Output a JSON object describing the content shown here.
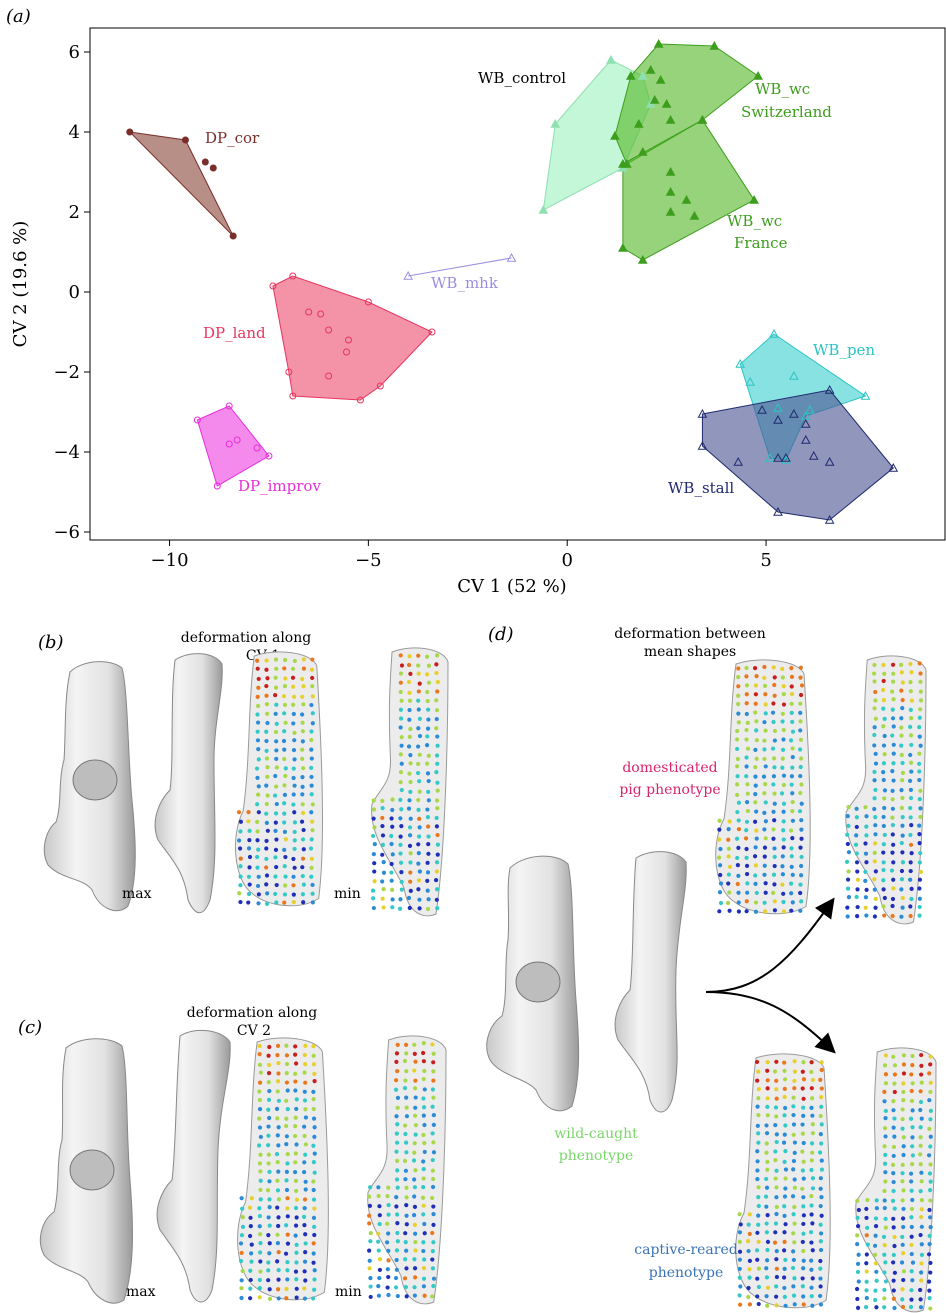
{
  "figure": {
    "panels": {
      "a": "(a)",
      "b": "(b)",
      "c": "(c)",
      "d": "(d)"
    },
    "notes": {
      "b_line1": "deformation along",
      "b_line2": "CV 1",
      "c_line1": "deformation along",
      "c_line2": "CV 2",
      "d_line1": "deformation between",
      "d_line2": "mean shapes"
    },
    "minmax": {
      "max": "max",
      "min": "min"
    },
    "phenotypes": {
      "domesticated": {
        "line1": "domesticated",
        "line2": "pig phenotype",
        "color": "#d9246e"
      },
      "wild": {
        "line1": "wild-caught",
        "line2": "phenotype",
        "color": "#7ad66a"
      },
      "captive": {
        "line1": "captive-reared",
        "line2": "phenotype",
        "color": "#3a73b8"
      }
    },
    "heatmap_colors": [
      "#1f2fb8",
      "#2a8bd6",
      "#33c9c6",
      "#a8d84a",
      "#e6d02e",
      "#e8771e",
      "#c81e1e"
    ]
  },
  "chart_data": {
    "type": "scatter",
    "title": "",
    "xlabel": "CV 1 (52 %)",
    "ylabel": "CV 2 (19.6 %)",
    "xlim": [
      -12,
      9.5
    ],
    "ylim": [
      -6.2,
      6.6
    ],
    "xticks": [
      -10,
      -5,
      0,
      5
    ],
    "xtick_labels": [
      "−10",
      "−5",
      "0",
      "5"
    ],
    "yticks": [
      -6,
      -4,
      -2,
      0,
      2,
      4,
      6
    ],
    "ytick_labels": [
      "−6",
      "−4",
      "−2",
      "0",
      "2",
      "4",
      "6"
    ],
    "grid": false,
    "series": [
      {
        "name": "DP_cor",
        "color": "#7a2e2a",
        "fill": "#8c4a3e",
        "marker": "filled-circle",
        "hull": [
          [
            -11.0,
            4.0
          ],
          [
            -9.6,
            3.8
          ],
          [
            -8.4,
            1.4
          ]
        ],
        "points": [
          [
            -11.0,
            4.0
          ],
          [
            -9.6,
            3.8
          ],
          [
            -9.1,
            3.25
          ],
          [
            -8.9,
            3.1
          ],
          [
            -8.4,
            1.4
          ]
        ]
      },
      {
        "name": "DP_land",
        "color": "#e8355e",
        "fill": "#ee4f72",
        "marker": "open-circle",
        "hull": [
          [
            -7.4,
            0.15
          ],
          [
            -6.9,
            0.4
          ],
          [
            -5.0,
            -0.25
          ],
          [
            -3.4,
            -1.0
          ],
          [
            -4.7,
            -2.35
          ],
          [
            -5.2,
            -2.7
          ],
          [
            -6.9,
            -2.6
          ],
          [
            -7.0,
            -2.0
          ]
        ],
        "points": [
          [
            -7.4,
            0.15
          ],
          [
            -6.9,
            0.4
          ],
          [
            -6.5,
            -0.5
          ],
          [
            -6.2,
            -0.55
          ],
          [
            -6.0,
            -0.95
          ],
          [
            -5.0,
            -0.25
          ],
          [
            -3.4,
            -1.0
          ],
          [
            -5.5,
            -1.2
          ],
          [
            -5.55,
            -1.5
          ],
          [
            -6.0,
            -2.1
          ],
          [
            -7.0,
            -2.0
          ],
          [
            -6.9,
            -2.6
          ],
          [
            -5.2,
            -2.7
          ],
          [
            -4.7,
            -2.35
          ]
        ]
      },
      {
        "name": "DP_improv",
        "color": "#e62fd8",
        "fill": "#ee44e0",
        "marker": "open-circle",
        "hull": [
          [
            -9.3,
            -3.2
          ],
          [
            -8.5,
            -2.85
          ],
          [
            -7.5,
            -4.1
          ],
          [
            -8.8,
            -4.85
          ]
        ],
        "points": [
          [
            -9.3,
            -3.2
          ],
          [
            -8.5,
            -2.85
          ],
          [
            -8.5,
            -3.8
          ],
          [
            -8.3,
            -3.7
          ],
          [
            -7.8,
            -3.9
          ],
          [
            -7.5,
            -4.1
          ],
          [
            -8.8,
            -4.85
          ]
        ]
      },
      {
        "name": "WB_mhk",
        "color": "#9b8fe0",
        "fill": "none",
        "marker": "open-triangle",
        "hull": [
          [
            -4.0,
            0.4
          ],
          [
            -1.4,
            0.85
          ]
        ],
        "points": [
          [
            -4.0,
            0.4
          ],
          [
            -1.4,
            0.85
          ]
        ]
      },
      {
        "name": "WB_control",
        "color": "#8ee0b0",
        "fill": "#9ff0c0",
        "marker": "filled-triangle",
        "hull": [
          [
            -0.6,
            2.05
          ],
          [
            -0.3,
            4.2
          ],
          [
            1.1,
            5.8
          ],
          [
            1.9,
            5.4
          ],
          [
            2.1,
            4.7
          ],
          [
            1.4,
            3.1
          ]
        ],
        "points": [
          [
            -0.6,
            2.05
          ],
          [
            -0.3,
            4.2
          ],
          [
            1.1,
            5.8
          ],
          [
            1.9,
            5.4
          ],
          [
            2.1,
            4.7
          ],
          [
            1.4,
            3.1
          ]
        ]
      },
      {
        "name": "WB_wc Switzerland",
        "color": "#3d9e1d",
        "fill": "#55b82a",
        "marker": "filled-triangle",
        "hull": [
          [
            2.3,
            6.2
          ],
          [
            3.7,
            6.15
          ],
          [
            4.8,
            5.4
          ],
          [
            3.4,
            4.3
          ],
          [
            1.5,
            3.2
          ],
          [
            1.2,
            3.9
          ],
          [
            1.6,
            5.4
          ]
        ],
        "points": [
          [
            2.3,
            6.2
          ],
          [
            3.7,
            6.15
          ],
          [
            4.8,
            5.4
          ],
          [
            1.6,
            5.4
          ],
          [
            2.1,
            5.55
          ],
          [
            2.35,
            5.3
          ],
          [
            1.8,
            4.2
          ],
          [
            1.2,
            3.9
          ],
          [
            1.5,
            3.2
          ],
          [
            2.2,
            4.8
          ],
          [
            2.5,
            4.7
          ],
          [
            2.6,
            4.3
          ],
          [
            3.4,
            4.3
          ]
        ]
      },
      {
        "name": "WB_wc France",
        "color": "#3d9e1d",
        "fill": "#55b82a",
        "marker": "filled-triangle",
        "hull": [
          [
            1.4,
            3.2
          ],
          [
            3.4,
            4.3
          ],
          [
            4.7,
            2.3
          ],
          [
            1.9,
            0.8
          ],
          [
            1.4,
            1.1
          ]
        ],
        "points": [
          [
            1.4,
            3.2
          ],
          [
            1.9,
            3.5
          ],
          [
            2.6,
            3.0
          ],
          [
            2.6,
            2.5
          ],
          [
            3.0,
            2.3
          ],
          [
            2.6,
            2.0
          ],
          [
            3.2,
            1.9
          ],
          [
            4.7,
            2.3
          ],
          [
            1.4,
            1.1
          ],
          [
            1.9,
            0.8
          ],
          [
            3.4,
            4.3
          ]
        ]
      },
      {
        "name": "WB_pen",
        "color": "#2bc4c4",
        "fill": "#3fd0d0",
        "marker": "open-triangle",
        "hull": [
          [
            5.2,
            -1.05
          ],
          [
            7.5,
            -2.6
          ],
          [
            6.0,
            -3.1
          ],
          [
            5.5,
            -4.2
          ],
          [
            5.1,
            -4.15
          ],
          [
            4.35,
            -1.8
          ]
        ],
        "points": [
          [
            5.2,
            -1.05
          ],
          [
            4.35,
            -1.8
          ],
          [
            4.6,
            -2.25
          ],
          [
            5.7,
            -2.1
          ],
          [
            7.5,
            -2.6
          ],
          [
            6.0,
            -3.1
          ],
          [
            5.5,
            -4.2
          ],
          [
            5.1,
            -4.15
          ],
          [
            5.3,
            -2.9
          ],
          [
            6.1,
            -2.95
          ]
        ]
      },
      {
        "name": "WB_stall",
        "color": "#1f2a6e",
        "fill": "#4d5594",
        "marker": "open-triangle",
        "hull": [
          [
            3.4,
            -3.05
          ],
          [
            6.6,
            -2.45
          ],
          [
            8.2,
            -4.4
          ],
          [
            6.6,
            -5.7
          ],
          [
            5.3,
            -5.5
          ],
          [
            3.4,
            -3.85
          ]
        ],
        "points": [
          [
            3.4,
            -3.05
          ],
          [
            6.6,
            -2.45
          ],
          [
            8.2,
            -4.4
          ],
          [
            6.6,
            -5.7
          ],
          [
            5.3,
            -5.5
          ],
          [
            3.4,
            -3.85
          ],
          [
            4.3,
            -4.25
          ],
          [
            5.3,
            -4.15
          ],
          [
            5.5,
            -4.15
          ],
          [
            5.7,
            -3.05
          ],
          [
            6.0,
            -3.3
          ],
          [
            6.0,
            -3.7
          ],
          [
            6.2,
            -4.1
          ],
          [
            6.6,
            -4.25
          ],
          [
            4.9,
            -2.95
          ],
          [
            5.3,
            -3.2
          ]
        ]
      }
    ]
  }
}
